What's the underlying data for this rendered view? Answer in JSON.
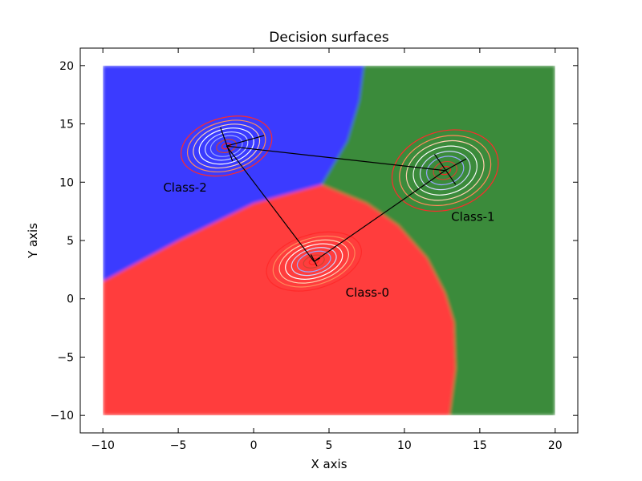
{
  "chart_data": {
    "type": "contour",
    "title": "Decision surfaces",
    "xlabel": "X axis",
    "ylabel": "Y axis",
    "xlim": [
      -11.5,
      21.5
    ],
    "ylim": [
      -11.5,
      21.5
    ],
    "xticks": [
      -10,
      -5,
      0,
      5,
      10,
      15,
      20
    ],
    "yticks": [
      -10,
      -5,
      0,
      5,
      10,
      15,
      20
    ],
    "xtick_labels": [
      "−10",
      "−5",
      "0",
      "5",
      "10",
      "15",
      "20"
    ],
    "ytick_labels": [
      "−10",
      "−5",
      "0",
      "5",
      "10",
      "15",
      "20"
    ],
    "grid": false,
    "surface_extent": {
      "x": [
        -10,
        20
      ],
      "y": [
        -10,
        20
      ]
    },
    "regions": [
      {
        "class": "Class-0",
        "color": "#ff3c3c",
        "polygon": [
          [
            -10,
            -10
          ],
          [
            13,
            -10
          ],
          [
            13.4,
            -6
          ],
          [
            13.3,
            -2
          ],
          [
            12.7,
            0.5
          ],
          [
            11.5,
            3.5
          ],
          [
            9.6,
            6.3
          ],
          [
            7.5,
            8.2
          ],
          [
            4.5,
            9.8
          ],
          [
            0,
            8.2
          ],
          [
            -5,
            5
          ],
          [
            -10,
            1.5
          ]
        ]
      },
      {
        "class": "Class-1",
        "color": "#3b8b3b",
        "polygon": [
          [
            7.3,
            20
          ],
          [
            20,
            20
          ],
          [
            20,
            -10
          ],
          [
            13,
            -10
          ],
          [
            13.4,
            -6
          ],
          [
            13.3,
            -2
          ],
          [
            12.7,
            0.5
          ],
          [
            11.5,
            3.5
          ],
          [
            9.6,
            6.3
          ],
          [
            7.5,
            8.2
          ],
          [
            4.5,
            9.8
          ],
          [
            6.2,
            13.5
          ],
          [
            7.0,
            17
          ]
        ]
      },
      {
        "class": "Class-2",
        "color": "#3b3bff",
        "polygon": [
          [
            -10,
            20
          ],
          [
            7.3,
            20
          ],
          [
            7.0,
            17
          ],
          [
            6.2,
            13.5
          ],
          [
            4.5,
            9.8
          ],
          [
            0,
            8.2
          ],
          [
            -5,
            5
          ],
          [
            -10,
            1.5
          ]
        ]
      }
    ],
    "classes": [
      {
        "name": "Class-0",
        "label": "Class-0",
        "mean": [
          4,
          3.2
        ],
        "label_pos": [
          6.1,
          0.2
        ],
        "tilt_deg": 17,
        "scale": [
          5.6,
          4.0
        ]
      },
      {
        "name": "Class-1",
        "label": "Class-1",
        "mean": [
          12.7,
          11.0
        ],
        "label_pos": [
          13.1,
          6.7
        ],
        "tilt_deg": 17,
        "scale": [
          6.2,
          5.8
        ]
      },
      {
        "name": "Class-2",
        "label": "Class-2",
        "mean": [
          -1.8,
          13.1
        ],
        "label_pos": [
          -6.0,
          9.2
        ],
        "tilt_deg": 15,
        "scale": [
          5.3,
          4.2
        ]
      }
    ],
    "mean_connections": [
      {
        "from": [
          -1.8,
          13.1
        ],
        "to": [
          12.7,
          11.0
        ]
      },
      {
        "from": [
          -1.8,
          13.1
        ],
        "to": [
          4,
          3.2
        ]
      },
      {
        "from": [
          4,
          3.2
        ],
        "to": [
          12.7,
          11.0
        ]
      }
    ],
    "axis_segments": [
      {
        "from": [
          -2.2,
          14.7
        ],
        "to": [
          -1.4,
          11.8
        ]
      },
      {
        "from": [
          -1.8,
          13.1
        ],
        "to": [
          0.7,
          14.0
        ]
      },
      {
        "from": [
          12.0,
          12.4
        ],
        "to": [
          13.4,
          9.8
        ]
      },
      {
        "from": [
          12.7,
          11.0
        ],
        "to": [
          14.1,
          12.0
        ]
      },
      {
        "from": [
          3.8,
          3.8
        ],
        "to": [
          4.2,
          2.8
        ]
      },
      {
        "from": [
          4,
          3.2
        ],
        "to": [
          4.4,
          3.5
        ]
      }
    ],
    "contour_levels": [
      {
        "r": 1.0,
        "color": "#ff2a2a"
      },
      {
        "r": 0.86,
        "color": "#ff8a5a"
      },
      {
        "r": 0.73,
        "color": "#ffd0b0"
      },
      {
        "r": 0.6,
        "color": "#ffffff"
      },
      {
        "r": 0.47,
        "color": "#d0d8ff"
      },
      {
        "r": 0.35,
        "color": "#9aa6ff"
      },
      {
        "r": 0.22,
        "color": "#cc4433"
      },
      {
        "r": 0.1,
        "color": "#ff2020"
      }
    ]
  }
}
